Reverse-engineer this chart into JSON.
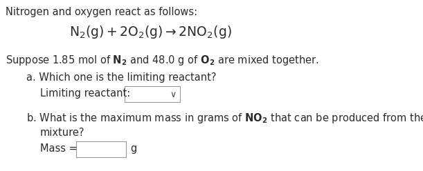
{
  "bg_color": "#ffffff",
  "text_color": "#2b2b2b",
  "title_color": "#2b2b2b",
  "line1": "Nitrogen and oxygen react as follows:",
  "eq_part1": "N",
  "eq_sub1": "2",
  "eq_part2": "(g) + 2O",
  "eq_sub2": "2",
  "eq_part3": "(g) → 2NO",
  "eq_sub3": "2",
  "eq_part4": "(g)",
  "line3_pre": "Suppose 1.85 mol of ",
  "line3_n": "N",
  "line3_n2": "2",
  "line3_mid": " and 48.0 g of ",
  "line3_o": "O",
  "line3_o2": "2",
  "line3_post": " are mixed together.",
  "qa": "a. Which one is the limiting reactant?",
  "label_a": "Limiting reactant:",
  "qb1": "b. What is the maximum mass in grams of NO",
  "qb1_sub": "2",
  "qb1_post": " that can be produced from the",
  "qb2": "mixture?",
  "mass_label": "Mass = ",
  "unit": "g",
  "fs": 10.5,
  "fs_eq": 13.5
}
